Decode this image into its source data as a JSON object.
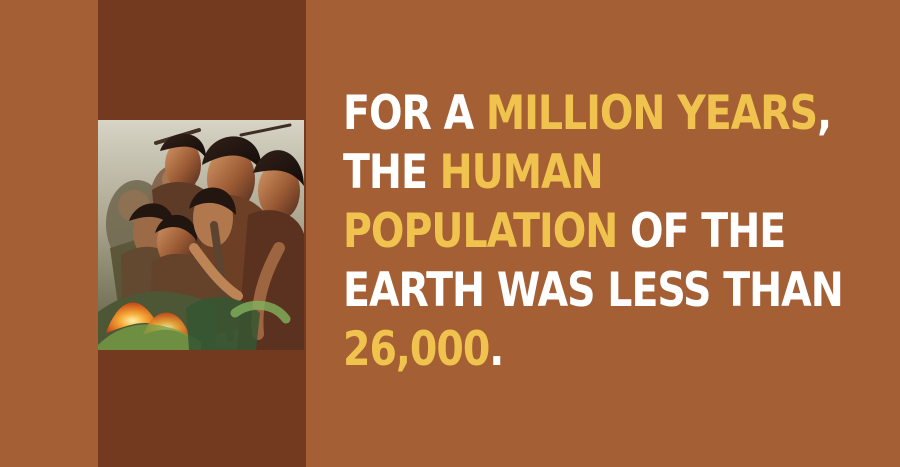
{
  "colors": {
    "background": "#a45f35",
    "band": "#733a20",
    "text": "#ffffff",
    "highlight": "#f0c34f"
  },
  "image": {
    "subject": "illustration of a crowd of prehistoric people",
    "icon": "prehistoric-people-illustration"
  },
  "fact": {
    "line1": {
      "part1": "FOR A ",
      "part2": "MILLION YEARS",
      "part3": ","
    },
    "line2": {
      "part1": "THE ",
      "part2": "HUMAN"
    },
    "line3": {
      "part1": "POPULATION",
      "part2": " OF THE"
    },
    "line4": {
      "part1": "EARTH WAS LESS THAN"
    },
    "line5": {
      "part1": "26,000",
      "part2": "."
    }
  }
}
